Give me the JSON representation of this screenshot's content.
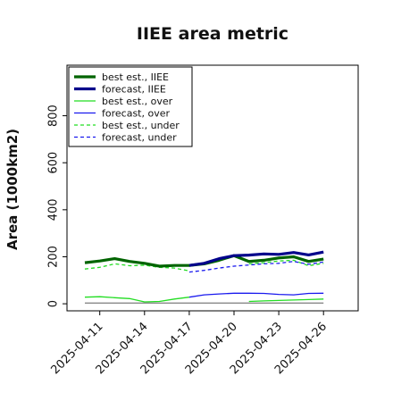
{
  "chart_data": {
    "type": "line",
    "title": "IIEE area metric",
    "xlabel": "",
    "ylabel": "Area (1000km2)",
    "x": [
      "2025-04-10",
      "2025-04-11",
      "2025-04-12",
      "2025-04-13",
      "2025-04-14",
      "2025-04-15",
      "2025-04-16",
      "2025-04-17",
      "2025-04-18",
      "2025-04-19",
      "2025-04-20",
      "2025-04-21",
      "2025-04-22",
      "2025-04-23",
      "2025-04-24",
      "2025-04-25",
      "2025-04-26"
    ],
    "xticks": [
      "2025-04-11",
      "2025-04-14",
      "2025-04-17",
      "2025-04-20",
      "2025-04-23",
      "2025-04-26"
    ],
    "xtick_colors": [
      "#000000",
      "#000000",
      "#2e8b2e",
      "#000000",
      "#000000",
      "#000000"
    ],
    "ylim": [
      -30,
      1015
    ],
    "yticks": [
      0,
      200,
      400,
      600,
      800
    ],
    "legend_position": "upper-left",
    "grid": false,
    "series": [
      {
        "name": "best est., IIEE",
        "color": "#006400",
        "width": 3.2,
        "dash": "",
        "values": [
          175,
          182,
          192,
          180,
          172,
          160,
          163,
          163,
          170,
          185,
          205,
          180,
          185,
          195,
          200,
          180,
          190
        ]
      },
      {
        "name": "forecast, IIEE",
        "color": "#00008b",
        "width": 3.2,
        "dash": "",
        "values": [
          null,
          null,
          null,
          null,
          null,
          null,
          null,
          163,
          172,
          192,
          205,
          207,
          212,
          210,
          218,
          208,
          220
        ]
      },
      {
        "name": "best est., over",
        "color": "#22dd22",
        "width": 1.3,
        "dash": "",
        "values": [
          28,
          30,
          26,
          22,
          8,
          10,
          20,
          28,
          null,
          null,
          null,
          10,
          12,
          14,
          16,
          18,
          20
        ]
      },
      {
        "name": "forecast, over",
        "color": "#1a1aee",
        "width": 1.3,
        "dash": "",
        "values": [
          null,
          null,
          null,
          null,
          null,
          null,
          null,
          28,
          38,
          42,
          45,
          45,
          44,
          40,
          38,
          44,
          45
        ]
      },
      {
        "name": "best est., under",
        "color": "#22dd22",
        "width": 1.3,
        "dash": "4,3",
        "values": [
          148,
          155,
          170,
          162,
          164,
          155,
          152,
          140,
          null,
          null,
          null,
          170,
          175,
          182,
          185,
          162,
          172
        ]
      },
      {
        "name": "forecast, under",
        "color": "#1a1aee",
        "width": 1.3,
        "dash": "4,3",
        "values": [
          null,
          null,
          null,
          null,
          null,
          null,
          null,
          135,
          142,
          152,
          160,
          165,
          170,
          172,
          180,
          168,
          178
        ]
      },
      {
        "name": "",
        "color": "#888888",
        "width": 1.3,
        "dash": "",
        "values": [
          3,
          3,
          3,
          3,
          3,
          3,
          3,
          3,
          3,
          3,
          3,
          3,
          3,
          3,
          3,
          3,
          3
        ]
      }
    ]
  }
}
